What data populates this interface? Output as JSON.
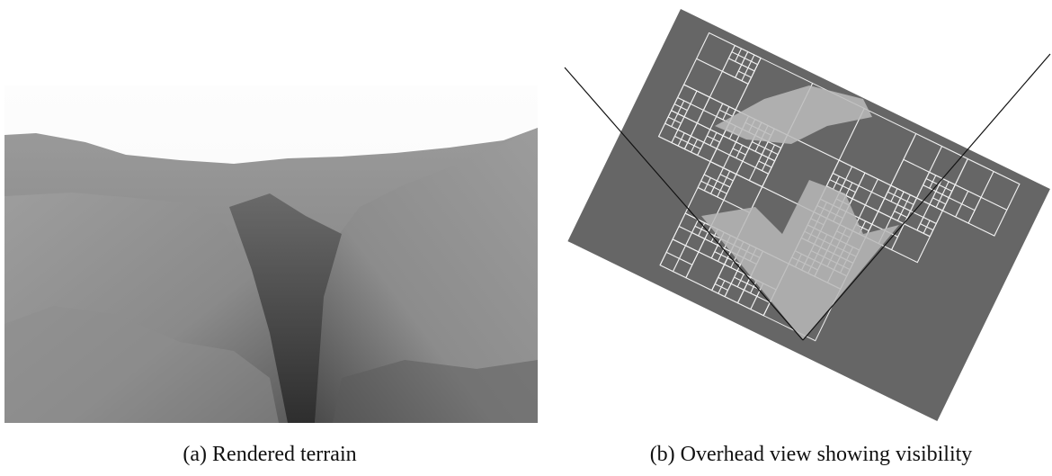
{
  "figures": [
    {
      "caption": "(a) Rendered terrain"
    },
    {
      "caption": "(b) Overhead view showing visibility"
    }
  ]
}
